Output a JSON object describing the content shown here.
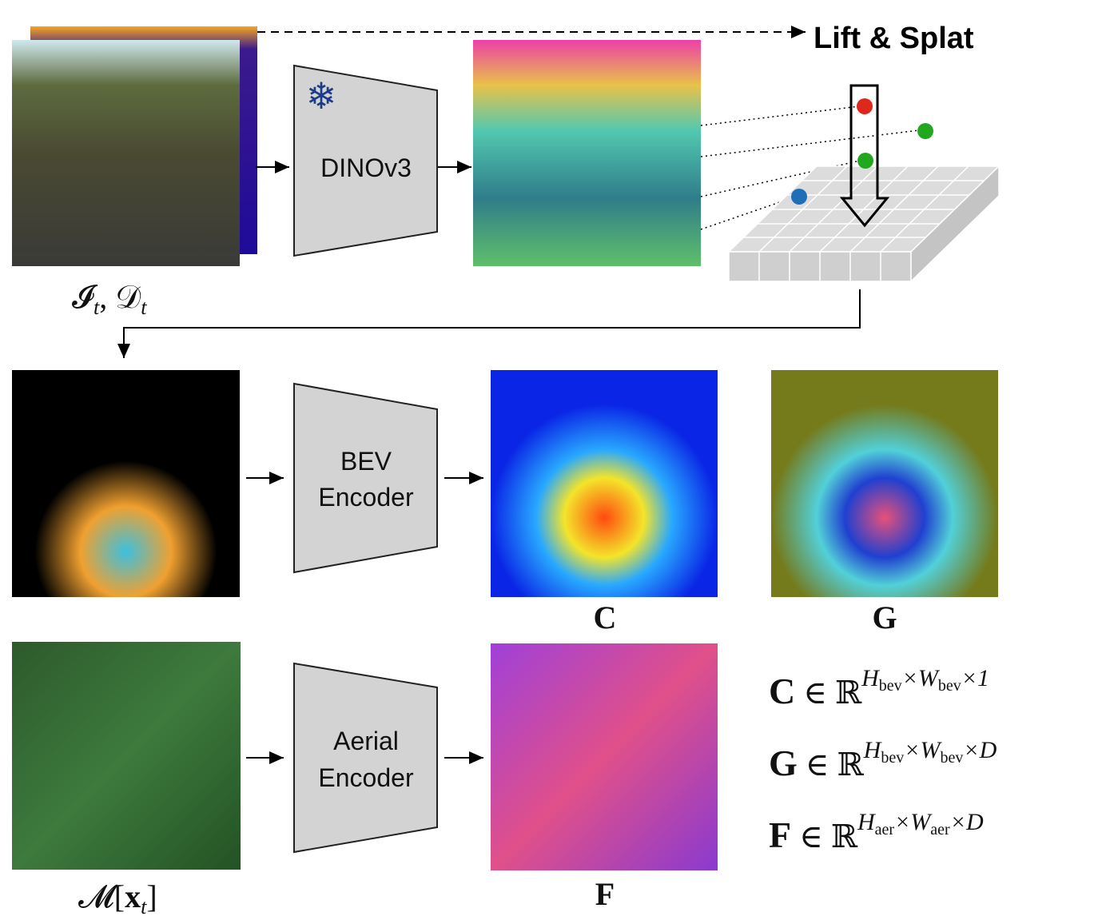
{
  "lift_label": "Lift & Splat",
  "encoders": {
    "image": "DINOv3",
    "bev": [
      "BEV",
      "Encoder"
    ],
    "aerial": [
      "Aerial",
      "Encoder"
    ]
  },
  "labels": {
    "input": {
      "image": "𝓘",
      "image_sub": "t",
      "sep": ", ",
      "depth": "𝒟",
      "depth_sub": "t"
    },
    "cost": "C",
    "geometry": "G",
    "map": {
      "main": "𝓜[",
      "x": "x",
      "x_sub": "t",
      "close": "]"
    },
    "aerial_features": "F"
  },
  "equations": [
    {
      "symbol": "C",
      "relation": " ∈ ℝ",
      "h": "H",
      "h_sub": "bev",
      "w": "×W",
      "w_sub": "bev",
      "last": "×1"
    },
    {
      "symbol": "G",
      "relation": " ∈ ℝ",
      "h": "H",
      "h_sub": "bev",
      "w": "×W",
      "w_sub": "bev",
      "last": "×D"
    },
    {
      "symbol": "F",
      "relation": " ∈ ℝ",
      "h": "H",
      "h_sub": "aer",
      "w": "×W",
      "w_sub": "aer",
      "last": "×D"
    }
  ]
}
